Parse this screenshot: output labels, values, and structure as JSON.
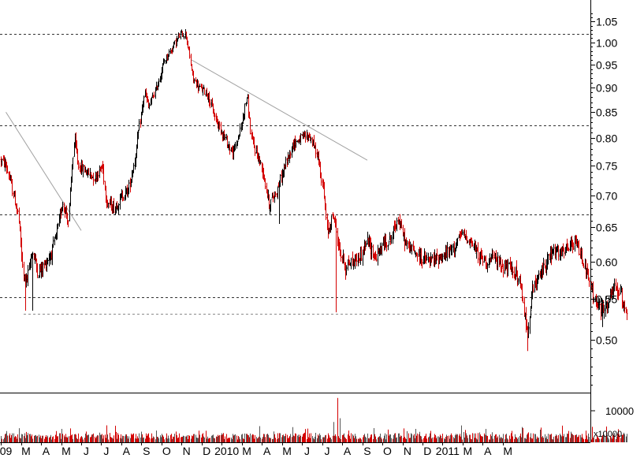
{
  "chart_data": {
    "type": "candlestick",
    "price_axis": {
      "ylim": [
        0.442,
        1.1
      ],
      "scale": "log",
      "ticks": [
        "0.50",
        "0.55",
        "0.60",
        "0.65",
        "0.70",
        "0.75",
        "0.80",
        "0.85",
        "0.90",
        "0.95",
        "1.00",
        "1.05"
      ]
    },
    "time_axis": {
      "labels": [
        "09",
        "M",
        "A",
        "M",
        "J",
        "J",
        "A",
        "S",
        "O",
        "N",
        "D",
        "2010",
        "M",
        "A",
        "M",
        "J",
        "J",
        "A",
        "S",
        "O",
        "N",
        "D",
        "2011",
        "M",
        "A",
        "M"
      ]
    },
    "volume_axis": {
      "tick": "10000",
      "unit_label": "x10000",
      "max": 26000
    },
    "horizontal_levels": [
      1.02,
      0.824,
      0.67,
      0.552,
      0.531
    ],
    "trendlines": [
      {
        "from": {
          "x": 0,
          "y": 0.85
        },
        "to": {
          "x": 3.75,
          "y": 0.645
        }
      },
      {
        "from": {
          "x": 9.25,
          "y": 0.96
        },
        "to": {
          "x": 18.0,
          "y": 0.76
        }
      }
    ],
    "price_anchors": [
      [
        -0.5,
        0.77
      ],
      [
        0.0,
        0.75
      ],
      [
        0.3,
        0.71
      ],
      [
        0.6,
        0.67
      ],
      [
        0.85,
        0.58
      ],
      [
        1.05,
        0.575
      ],
      [
        1.3,
        0.615
      ],
      [
        1.6,
        0.585
      ],
      [
        1.9,
        0.595
      ],
      [
        2.3,
        0.615
      ],
      [
        2.6,
        0.65
      ],
      [
        2.8,
        0.69
      ],
      [
        3.1,
        0.66
      ],
      [
        3.4,
        0.8
      ],
      [
        3.6,
        0.75
      ],
      [
        4.0,
        0.74
      ],
      [
        4.4,
        0.73
      ],
      [
        4.8,
        0.75
      ],
      [
        5.0,
        0.69
      ],
      [
        5.4,
        0.68
      ],
      [
        5.8,
        0.7
      ],
      [
        6.1,
        0.71
      ],
      [
        6.4,
        0.76
      ],
      [
        6.9,
        0.89
      ],
      [
        7.1,
        0.86
      ],
      [
        7.5,
        0.9
      ],
      [
        7.9,
        0.96
      ],
      [
        8.3,
        0.99
      ],
      [
        8.7,
        1.02
      ],
      [
        8.95,
        1.02
      ],
      [
        9.3,
        0.92
      ],
      [
        9.6,
        0.9
      ],
      [
        10.0,
        0.89
      ],
      [
        10.4,
        0.84
      ],
      [
        10.9,
        0.8
      ],
      [
        11.3,
        0.77
      ],
      [
        11.7,
        0.82
      ],
      [
        12.0,
        0.885
      ],
      [
        12.2,
        0.8
      ],
      [
        12.5,
        0.77
      ],
      [
        12.8,
        0.74
      ],
      [
        13.1,
        0.685
      ],
      [
        13.5,
        0.71
      ],
      [
        13.9,
        0.75
      ],
      [
        14.3,
        0.79
      ],
      [
        14.7,
        0.8
      ],
      [
        15.1,
        0.805
      ],
      [
        15.5,
        0.77
      ],
      [
        15.8,
        0.71
      ],
      [
        16.0,
        0.64
      ],
      [
        16.3,
        0.67
      ],
      [
        16.6,
        0.615
      ],
      [
        16.9,
        0.595
      ],
      [
        17.3,
        0.6
      ],
      [
        17.7,
        0.61
      ],
      [
        18.0,
        0.63
      ],
      [
        18.4,
        0.605
      ],
      [
        18.8,
        0.625
      ],
      [
        19.2,
        0.635
      ],
      [
        19.5,
        0.665
      ],
      [
        19.9,
        0.625
      ],
      [
        20.3,
        0.615
      ],
      [
        20.7,
        0.605
      ],
      [
        21.1,
        0.6
      ],
      [
        21.5,
        0.605
      ],
      [
        21.9,
        0.61
      ],
      [
        22.3,
        0.62
      ],
      [
        22.7,
        0.64
      ],
      [
        23.1,
        0.63
      ],
      [
        23.5,
        0.61
      ],
      [
        23.9,
        0.6
      ],
      [
        24.3,
        0.605
      ],
      [
        24.7,
        0.595
      ],
      [
        25.1,
        0.59
      ],
      [
        25.4,
        0.585
      ],
      [
        25.7,
        0.555
      ],
      [
        25.95,
        0.505
      ],
      [
        26.2,
        0.56
      ],
      [
        26.5,
        0.575
      ],
      [
        26.9,
        0.6
      ],
      [
        27.3,
        0.615
      ],
      [
        27.7,
        0.61
      ],
      [
        28.0,
        0.62
      ],
      [
        28.4,
        0.625
      ],
      [
        28.7,
        0.605
      ],
      [
        29.0,
        0.575
      ],
      [
        29.3,
        0.55
      ],
      [
        29.6,
        0.535
      ],
      [
        30.0,
        0.545
      ],
      [
        30.3,
        0.565
      ],
      [
        30.6,
        0.555
      ],
      [
        30.9,
        0.535
      ]
    ],
    "spikes": [
      [
        0.98,
        0.535
      ],
      [
        1.35,
        0.535
      ],
      [
        13.6,
        0.655
      ],
      [
        16.45,
        0.533
      ],
      [
        16.9,
        0.575
      ],
      [
        26.0,
        0.487
      ],
      [
        29.7,
        0.515
      ],
      [
        30.95,
        0.525
      ]
    ],
    "big_volume_days": [
      [
        16.5,
        24000
      ],
      [
        16.65,
        13000
      ],
      [
        16.3,
        11000
      ]
    ],
    "colors": {
      "up": "#000000",
      "down": "#d40000",
      "grid": "#333333",
      "trend": "#a0a0a0"
    }
  }
}
